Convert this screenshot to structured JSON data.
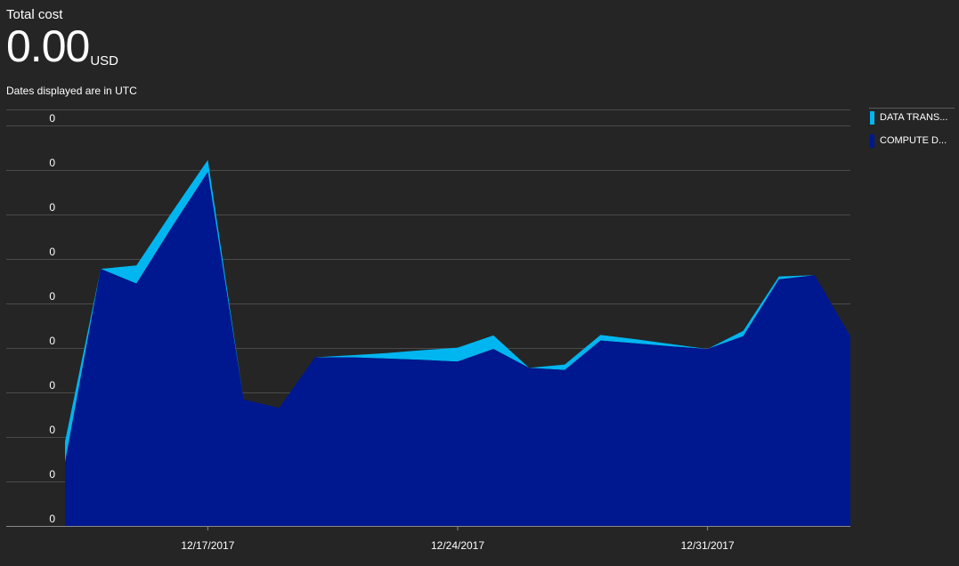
{
  "header": {
    "title": "Total cost",
    "value": "0.00",
    "unit": "USD",
    "note": "Dates displayed are in UTC"
  },
  "legend": [
    {
      "label": "DATA TRANS...",
      "color": "#00b6f0"
    },
    {
      "label": "COMPUTE D...",
      "color": "#00188f"
    }
  ],
  "chart_data": {
    "type": "area",
    "stacked": true,
    "x_start": "2017-12-12",
    "x_end": "2018-01-05",
    "x_ticks": [
      {
        "date": "2017-12-17",
        "label": "12/17/2017"
      },
      {
        "date": "2017-12-24",
        "label": "12/24/2017"
      },
      {
        "date": "2017-12-31",
        "label": "12/31/2017"
      }
    ],
    "y_tick_labels": [
      "0",
      "0",
      "0",
      "0",
      "0",
      "0",
      "0",
      "0",
      "0",
      "0"
    ],
    "ylim": [
      0,
      9.5
    ],
    "grid": true,
    "legend_position": "right",
    "series": [
      {
        "name": "COMPUTE D...",
        "color": "#00188f",
        "points": [
          {
            "x": "2017-12-13",
            "y": 1.5
          },
          {
            "x": "2017-12-14",
            "y": 6.1
          },
          {
            "x": "2017-12-15",
            "y": 5.75
          },
          {
            "x": "2017-12-16",
            "y": 7.1
          },
          {
            "x": "2017-12-17",
            "y": 8.4
          },
          {
            "x": "2017-12-18",
            "y": 3.0
          },
          {
            "x": "2017-12-19",
            "y": 2.8
          },
          {
            "x": "2017-12-20",
            "y": 4.0
          },
          {
            "x": "2017-12-21",
            "y": 4.0
          },
          {
            "x": "2017-12-22",
            "y": 3.97
          },
          {
            "x": "2017-12-23",
            "y": 3.94
          },
          {
            "x": "2017-12-24",
            "y": 3.9
          },
          {
            "x": "2017-12-25",
            "y": 4.2
          },
          {
            "x": "2017-12-26",
            "y": 3.75
          },
          {
            "x": "2017-12-27",
            "y": 3.7
          },
          {
            "x": "2017-12-28",
            "y": 4.4
          },
          {
            "x": "2017-12-29",
            "y": 4.33
          },
          {
            "x": "2017-12-30",
            "y": 4.26
          },
          {
            "x": "2017-12-31",
            "y": 4.2
          },
          {
            "x": "2018-01-01",
            "y": 4.5
          },
          {
            "x": "2018-01-02",
            "y": 5.85
          },
          {
            "x": "2018-01-03",
            "y": 5.95
          },
          {
            "x": "2018-01-04",
            "y": 4.5
          }
        ]
      },
      {
        "name": "DATA TRANS...",
        "color": "#00b6f0",
        "points": [
          {
            "x": "2017-12-13",
            "y": 0.5
          },
          {
            "x": "2017-12-14",
            "y": 0.0
          },
          {
            "x": "2017-12-15",
            "y": 0.43
          },
          {
            "x": "2017-12-16",
            "y": 0.35
          },
          {
            "x": "2017-12-17",
            "y": 0.28
          },
          {
            "x": "2017-12-18",
            "y": 0.0
          },
          {
            "x": "2017-12-19",
            "y": 0.0
          },
          {
            "x": "2017-12-20",
            "y": 0.0
          },
          {
            "x": "2017-12-21",
            "y": 0.05
          },
          {
            "x": "2017-12-22",
            "y": 0.13
          },
          {
            "x": "2017-12-23",
            "y": 0.23
          },
          {
            "x": "2017-12-24",
            "y": 0.33
          },
          {
            "x": "2017-12-25",
            "y": 0.32
          },
          {
            "x": "2017-12-26",
            "y": 0.0
          },
          {
            "x": "2017-12-27",
            "y": 0.13
          },
          {
            "x": "2017-12-28",
            "y": 0.13
          },
          {
            "x": "2017-12-29",
            "y": 0.1
          },
          {
            "x": "2017-12-30",
            "y": 0.05
          },
          {
            "x": "2017-12-31",
            "y": 0.0
          },
          {
            "x": "2018-01-01",
            "y": 0.13
          },
          {
            "x": "2018-01-02",
            "y": 0.07
          },
          {
            "x": "2018-01-03",
            "y": 0.0
          },
          {
            "x": "2018-01-04",
            "y": 0.0
          }
        ]
      }
    ]
  }
}
